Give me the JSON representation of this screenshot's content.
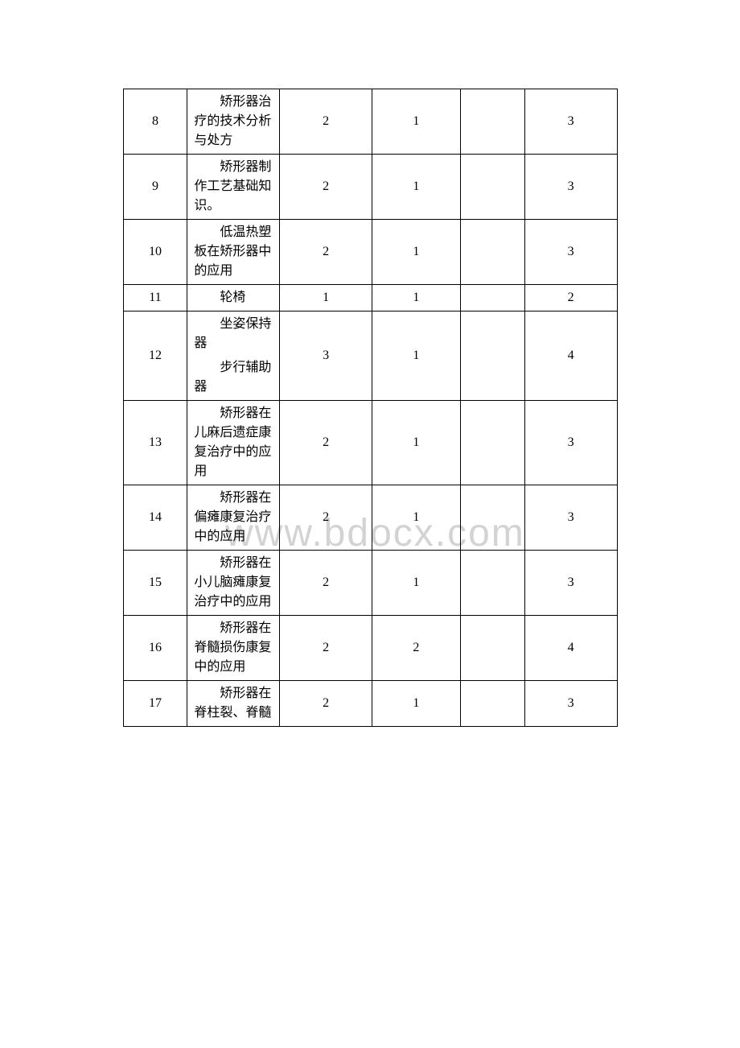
{
  "watermark": "www.bdocx.com",
  "table": {
    "columns": {
      "col0_width": 80,
      "col1_width": 115,
      "col2_width": 115,
      "col3_width": 110,
      "col4_width": 80,
      "col5_width": 115
    },
    "border_color": "#000000",
    "background_color": "#ffffff",
    "font_size": 16,
    "text_indent_em": 2,
    "rows": [
      {
        "num": "8",
        "topic": "矫形器治疗的技术分析与处方",
        "c2": "2",
        "c3": "1",
        "c4": "",
        "c5": "3"
      },
      {
        "num": "9",
        "topic": "矫形器制作工艺基础知识。",
        "c2": "2",
        "c3": "1",
        "c4": "",
        "c5": "3"
      },
      {
        "num": "10",
        "topic": "低温热塑板在矫形器中的应用",
        "c2": "2",
        "c3": "1",
        "c4": "",
        "c5": "3"
      },
      {
        "num": "11",
        "topic": "轮椅",
        "c2": "1",
        "c3": "1",
        "c4": "",
        "c5": "2"
      },
      {
        "num": "12",
        "topic_multi": [
          "坐姿保持器",
          "步行辅助器"
        ],
        "c2": "3",
        "c3": "1",
        "c4": "",
        "c5": "4"
      },
      {
        "num": "13",
        "topic": "矫形器在儿麻后遗症康复治疗中的应用",
        "c2": "2",
        "c3": "1",
        "c4": "",
        "c5": "3"
      },
      {
        "num": "14",
        "topic": "矫形器在偏瘫康复治疗中的应用",
        "c2": "2",
        "c3": "1",
        "c4": "",
        "c5": "3"
      },
      {
        "num": "15",
        "topic": "矫形器在小儿脑瘫康复治疗中的应用",
        "c2": "2",
        "c3": "1",
        "c4": "",
        "c5": "3"
      },
      {
        "num": "16",
        "topic": "矫形器在脊髓损伤康复中的应用",
        "c2": "2",
        "c3": "2",
        "c4": "",
        "c5": "4"
      },
      {
        "num": "17",
        "topic": "矫形器在脊柱裂、脊髓",
        "c2": "2",
        "c3": "1",
        "c4": "",
        "c5": "3"
      }
    ]
  }
}
